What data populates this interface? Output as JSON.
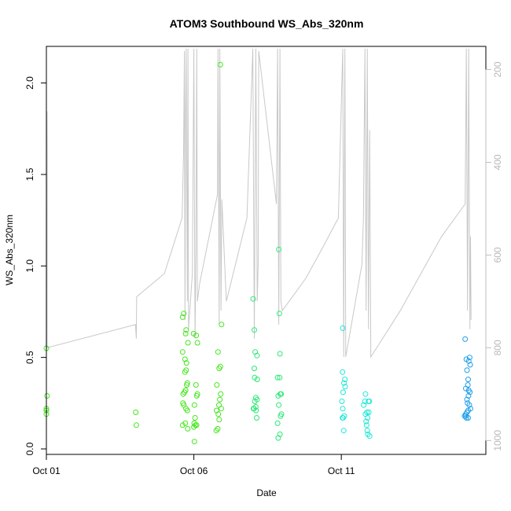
{
  "chart_data": {
    "type": "scatter",
    "title": "ATOM3 Southbound WS_Abs_320nm",
    "xlabel": "Date",
    "ylabel": "WS_Abs_320nm",
    "xlim": [
      0,
      14.9
    ],
    "ylim": [
      -0.03,
      2.2
    ],
    "x_ticks": [
      {
        "value": 0,
        "label": "Oct 01"
      },
      {
        "value": 5,
        "label": "Oct 06"
      },
      {
        "value": 10,
        "label": "Oct 11"
      }
    ],
    "y_ticks": [
      0.0,
      0.5,
      1.0,
      1.5,
      2.0
    ],
    "y_tick_labels": [
      "0.0",
      "0.5",
      "1.0",
      "1.5",
      "2.0"
    ],
    "secondary_axis": {
      "position": "right",
      "inverted": true,
      "ylim": [
        1030,
        150
      ],
      "ticks": [
        200,
        400,
        600,
        800,
        1000
      ],
      "tick_labels": [
        "200",
        "400",
        "600",
        "800",
        "1000"
      ],
      "color": "#bebebe"
    },
    "series": [
      {
        "values": [
          [
            0.0,
            0.55
          ],
          [
            0.02,
            0.29
          ],
          [
            0.0,
            0.22
          ],
          [
            0.0,
            0.21
          ],
          [
            0.0,
            0.19
          ],
          [
            3.03,
            0.2
          ],
          [
            3.05,
            0.13
          ],
          [
            4.62,
            0.72
          ],
          [
            4.66,
            0.74
          ],
          [
            4.72,
            0.63
          ],
          [
            4.74,
            0.65
          ],
          [
            4.8,
            0.58
          ],
          [
            4.62,
            0.53
          ],
          [
            4.7,
            0.49
          ],
          [
            4.75,
            0.47
          ],
          [
            4.74,
            0.43
          ],
          [
            4.7,
            0.42
          ],
          [
            4.78,
            0.36
          ],
          [
            4.76,
            0.35
          ],
          [
            4.72,
            0.32
          ],
          [
            4.68,
            0.31
          ],
          [
            4.64,
            0.3
          ],
          [
            4.63,
            0.25
          ],
          [
            4.66,
            0.24
          ],
          [
            4.73,
            0.22
          ],
          [
            4.78,
            0.21
          ],
          [
            4.71,
            0.14
          ],
          [
            4.62,
            0.13
          ],
          [
            4.79,
            0.11
          ],
          [
            4.99,
            0.63
          ],
          [
            5.08,
            0.62
          ],
          [
            5.12,
            0.58
          ],
          [
            5.07,
            0.35
          ],
          [
            5.12,
            0.3
          ],
          [
            5.1,
            0.29
          ],
          [
            5.02,
            0.24
          ],
          [
            5.04,
            0.17
          ],
          [
            5.01,
            0.14
          ],
          [
            5.05,
            0.13
          ],
          [
            5.09,
            0.13
          ],
          [
            5.0,
            0.12
          ],
          [
            5.02,
            0.04
          ],
          [
            5.9,
            2.1
          ],
          [
            5.94,
            0.68
          ],
          [
            5.82,
            0.53
          ],
          [
            5.9,
            0.45
          ],
          [
            5.86,
            0.44
          ],
          [
            5.78,
            0.35
          ],
          [
            5.91,
            0.3
          ],
          [
            5.88,
            0.27
          ],
          [
            5.85,
            0.24
          ],
          [
            5.93,
            0.22
          ],
          [
            5.77,
            0.21
          ],
          [
            5.83,
            0.19
          ],
          [
            5.86,
            0.16
          ],
          [
            5.81,
            0.11
          ],
          [
            5.76,
            0.1
          ]
        ]
      },
      {
        "values": [
          [
            7.05,
            0.65
          ],
          [
            7.08,
            0.53
          ],
          [
            7.14,
            0.51
          ],
          [
            7.05,
            0.44
          ],
          [
            7.15,
            0.38
          ],
          [
            7.06,
            0.39
          ],
          [
            7.1,
            0.28
          ],
          [
            7.14,
            0.27
          ],
          [
            7.07,
            0.26
          ],
          [
            7.1,
            0.23
          ],
          [
            7.02,
            0.22
          ],
          [
            7.11,
            0.21
          ],
          [
            7.13,
            0.17
          ],
          [
            7.01,
            0.82
          ],
          [
            7.04,
            0.22
          ],
          [
            7.88,
            1.09
          ],
          [
            7.9,
            0.74
          ],
          [
            7.92,
            0.52
          ],
          [
            7.84,
            0.39
          ],
          [
            7.91,
            0.39
          ],
          [
            7.93,
            0.3
          ],
          [
            7.96,
            0.3
          ],
          [
            7.86,
            0.29
          ],
          [
            7.88,
            0.24
          ],
          [
            7.97,
            0.19
          ],
          [
            7.94,
            0.18
          ],
          [
            7.84,
            0.14
          ],
          [
            7.92,
            0.08
          ],
          [
            7.86,
            0.06
          ]
        ]
      },
      {
        "values": [
          [
            10.05,
            0.66
          ],
          [
            10.04,
            0.42
          ],
          [
            10.12,
            0.38
          ],
          [
            10.09,
            0.36
          ],
          [
            10.13,
            0.34
          ],
          [
            10.06,
            0.31
          ],
          [
            10.02,
            0.26
          ],
          [
            10.05,
            0.22
          ],
          [
            10.1,
            0.18
          ],
          [
            10.06,
            0.17
          ],
          [
            10.04,
            0.17
          ],
          [
            10.08,
            0.1
          ],
          [
            10.82,
            0.3
          ],
          [
            10.8,
            0.26
          ],
          [
            10.92,
            0.26
          ],
          [
            10.95,
            0.26
          ],
          [
            10.76,
            0.24
          ],
          [
            10.87,
            0.2
          ],
          [
            10.93,
            0.2
          ],
          [
            10.82,
            0.19
          ],
          [
            10.89,
            0.17
          ],
          [
            10.84,
            0.15
          ],
          [
            10.86,
            0.13
          ],
          [
            10.88,
            0.1
          ],
          [
            10.9,
            0.08
          ],
          [
            10.96,
            0.07
          ]
        ]
      },
      {
        "values": [
          [
            14.2,
            0.6
          ],
          [
            14.35,
            0.5
          ],
          [
            14.24,
            0.49
          ],
          [
            14.32,
            0.48
          ],
          [
            14.37,
            0.46
          ],
          [
            14.26,
            0.43
          ],
          [
            14.3,
            0.38
          ],
          [
            14.29,
            0.35
          ],
          [
            14.22,
            0.33
          ],
          [
            14.32,
            0.32
          ],
          [
            14.36,
            0.31
          ],
          [
            14.31,
            0.29
          ],
          [
            14.26,
            0.27
          ],
          [
            14.28,
            0.25
          ],
          [
            14.34,
            0.24
          ],
          [
            14.38,
            0.22
          ],
          [
            14.3,
            0.21
          ],
          [
            14.26,
            0.2
          ],
          [
            14.22,
            0.18
          ],
          [
            14.18,
            0.18
          ],
          [
            14.24,
            0.17
          ],
          [
            14.3,
            0.17
          ],
          [
            14.22,
            0.19
          ]
        ]
      }
    ],
    "colors": {
      "series": [
        "#45e61f",
        "#2ee877",
        "#1fe8d8",
        "#1f9fe8"
      ],
      "secondary_line": "#c8c8c8",
      "axis": "#000000",
      "secondary_axis": "#bebebe"
    },
    "secondary_line_values": [
      [
        0.0,
        320
      ],
      [
        0.02,
        290
      ],
      [
        0.03,
        390
      ],
      [
        0.02,
        800
      ],
      [
        3.02,
        750
      ],
      [
        3.05,
        780
      ],
      [
        3.06,
        690
      ],
      [
        4.0,
        640
      ],
      [
        4.6,
        520
      ],
      [
        4.65,
        380
      ],
      [
        4.68,
        160
      ],
      [
        4.7,
        740
      ],
      [
        4.72,
        300
      ],
      [
        4.74,
        155
      ],
      [
        4.78,
        700
      ],
      [
        4.8,
        155
      ],
      [
        4.82,
        760
      ],
      [
        4.95,
        640
      ],
      [
        5.0,
        155
      ],
      [
        5.04,
        780
      ],
      [
        5.07,
        600
      ],
      [
        5.1,
        155
      ],
      [
        5.12,
        700
      ],
      [
        5.2,
        660
      ],
      [
        5.8,
        470
      ],
      [
        5.82,
        155
      ],
      [
        5.86,
        750
      ],
      [
        5.88,
        155
      ],
      [
        5.92,
        720
      ],
      [
        5.95,
        480
      ],
      [
        6.1,
        700
      ],
      [
        6.8,
        520
      ],
      [
        7.0,
        155
      ],
      [
        7.05,
        780
      ],
      [
        7.1,
        155
      ],
      [
        7.15,
        700
      ],
      [
        7.18,
        620
      ],
      [
        7.2,
        160
      ],
      [
        7.8,
        490
      ],
      [
        7.84,
        155
      ],
      [
        7.88,
        750
      ],
      [
        7.92,
        155
      ],
      [
        7.95,
        700
      ],
      [
        8.0,
        720
      ],
      [
        8.8,
        650
      ],
      [
        9.4,
        580
      ],
      [
        9.9,
        520
      ],
      [
        10.05,
        155
      ],
      [
        10.08,
        820
      ],
      [
        10.1,
        480
      ],
      [
        10.12,
        155
      ],
      [
        10.15,
        820
      ],
      [
        10.7,
        620
      ],
      [
        10.75,
        520
      ],
      [
        10.8,
        155
      ],
      [
        10.84,
        720
      ],
      [
        10.88,
        155
      ],
      [
        10.92,
        760
      ],
      [
        10.96,
        330
      ],
      [
        11.0,
        820
      ],
      [
        12.0,
        720
      ],
      [
        13.4,
        560
      ],
      [
        14.2,
        490
      ],
      [
        14.24,
        155
      ],
      [
        14.28,
        720
      ],
      [
        14.32,
        155
      ],
      [
        14.36,
        760
      ],
      [
        14.38,
        560
      ],
      [
        14.4,
        740
      ]
    ]
  }
}
